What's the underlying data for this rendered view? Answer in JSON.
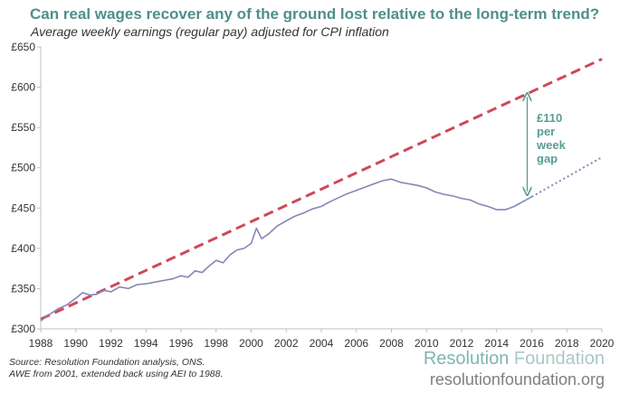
{
  "title": "Can real wages recover any of the ground lost relative to the long-term trend?",
  "subtitle": "Average weekly earnings (regular pay) adjusted for CPI inflation",
  "source_lines": [
    "Source: Resolution Foundation  analysis, ONS.",
    "AWE from 2001, extended back using AEI to 1988."
  ],
  "brand": {
    "name_part1": "Resolution",
    "name_part2": " Foundation",
    "url": "resolutionfoundation.org"
  },
  "annotation": {
    "line1": "£110",
    "line2": "per",
    "line3": "week",
    "line4": "gap"
  },
  "colors": {
    "title": "#4e8f8b",
    "trend": "#d0485a",
    "actual": "#8585b8",
    "arrow": "#5a9b96"
  },
  "chart_data": {
    "type": "line",
    "xlim": [
      1988,
      2020
    ],
    "ylim": [
      300,
      650
    ],
    "x_ticks": [
      "1988",
      "1990",
      "1992",
      "1994",
      "1996",
      "1998",
      "2000",
      "2002",
      "2004",
      "2006",
      "2008",
      "2010",
      "2012",
      "2014",
      "2016",
      "2018",
      "2020"
    ],
    "y_ticks": [
      "£300",
      "£350",
      "£400",
      "£450",
      "£500",
      "£550",
      "£600",
      "£650"
    ],
    "grid": false,
    "series": [
      {
        "style": "dashed",
        "x": [
          1988,
          2020
        ],
        "y": [
          312,
          635
        ]
      },
      {
        "style": "solid",
        "x": [
          1988.0,
          1988.5,
          1989.0,
          1989.5,
          1990.0,
          1990.4,
          1990.8,
          1991.2,
          1991.6,
          1992.0,
          1992.5,
          1993.0,
          1993.5,
          1994.0,
          1994.5,
          1995.0,
          1995.5,
          1996.0,
          1996.4,
          1996.8,
          1997.2,
          1997.6,
          1998.0,
          1998.4,
          1998.8,
          1999.2,
          1999.6,
          2000.0,
          2000.3,
          2000.6,
          2001.0,
          2001.5,
          2002.0,
          2002.5,
          2003.0,
          2003.5,
          2004.0,
          2004.5,
          2005.0,
          2005.5,
          2006.0,
          2006.5,
          2007.0,
          2007.5,
          2008.0,
          2008.5,
          2009.0,
          2009.5,
          2010.0,
          2010.5,
          2011.0,
          2011.5,
          2012.0,
          2012.5,
          2013.0,
          2013.5,
          2014.0,
          2014.5,
          2015.0,
          2015.5,
          2016.0
        ],
        "y": [
          310,
          318,
          325,
          330,
          338,
          345,
          342,
          343,
          348,
          346,
          352,
          350,
          355,
          356,
          358,
          360,
          362,
          366,
          364,
          372,
          370,
          378,
          385,
          382,
          392,
          398,
          400,
          406,
          425,
          412,
          418,
          428,
          434,
          440,
          444,
          449,
          452,
          458,
          463,
          468,
          472,
          476,
          480,
          484,
          486,
          482,
          480,
          478,
          475,
          470,
          467,
          465,
          462,
          460,
          455,
          452,
          448,
          448,
          452,
          458,
          464
        ]
      },
      {
        "style": "dotted",
        "x": [
          2016,
          2020
        ],
        "y": [
          464,
          513
        ]
      }
    ]
  }
}
